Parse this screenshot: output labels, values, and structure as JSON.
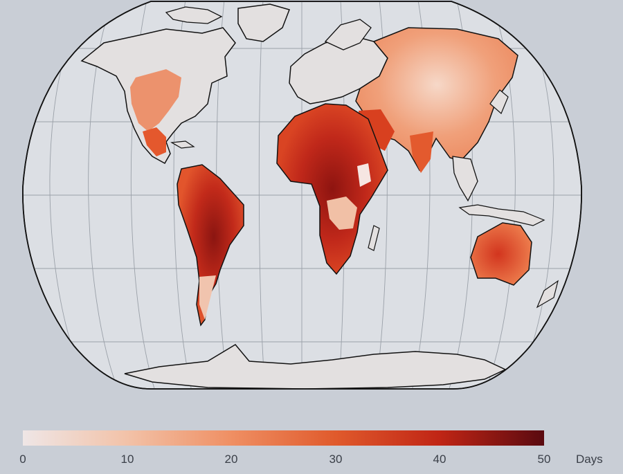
{
  "map": {
    "projection": "robinson",
    "background_color": "#c9ced6",
    "ocean_color": "#dcdfe4",
    "coastline_color": "#111111",
    "graticule_color": "#9aa0a8"
  },
  "legend": {
    "ticks": [
      "0",
      "10",
      "20",
      "30",
      "40",
      "50"
    ],
    "unit": "Days",
    "colors": [
      "#efe6e6",
      "#f2c2a8",
      "#ef8f63",
      "#e05a2c",
      "#c02515",
      "#5a0a10"
    ]
  }
}
